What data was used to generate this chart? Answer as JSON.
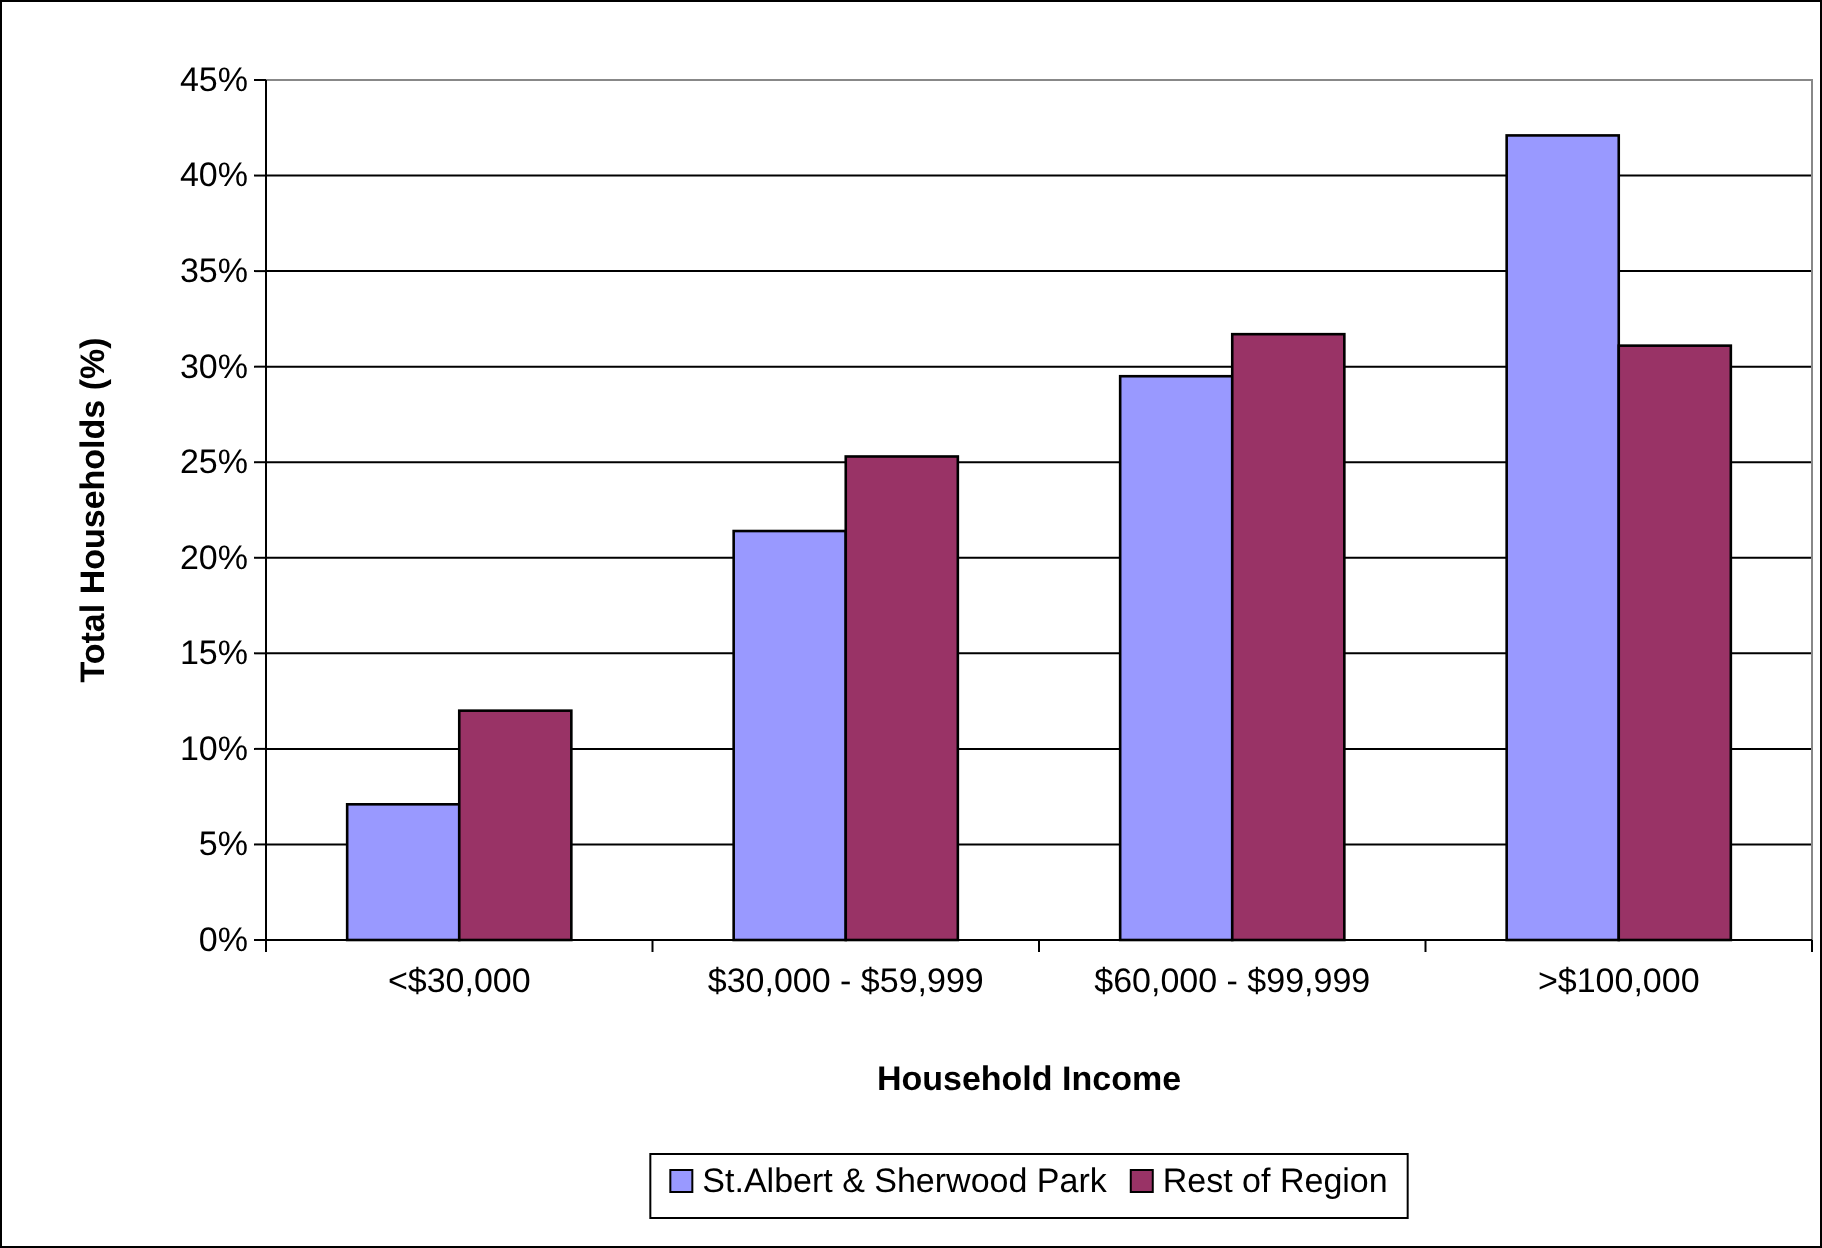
{
  "chart_data": {
    "type": "bar",
    "xlabel": "Household Income",
    "ylabel": "Total Households (%)",
    "categories": [
      "<$30,000",
      "$30,000 - $59,999",
      "$60,000 - $99,999",
      ">$100,000"
    ],
    "series": [
      {
        "name": "St.Albert & Sherwood Park",
        "color": "#9999ff",
        "values": [
          7.1,
          21.4,
          29.5,
          42.1
        ]
      },
      {
        "name": "Rest of Region",
        "color": "#993366",
        "values": [
          12.0,
          25.3,
          31.7,
          31.1
        ]
      }
    ],
    "ylim": [
      0,
      45
    ],
    "yticks": [
      {
        "value": 0,
        "label": "0%"
      },
      {
        "value": 5,
        "label": "5%"
      },
      {
        "value": 10,
        "label": "10%"
      },
      {
        "value": 15,
        "label": "15%"
      },
      {
        "value": 20,
        "label": "20%"
      },
      {
        "value": 25,
        "label": "25%"
      },
      {
        "value": 30,
        "label": "30%"
      },
      {
        "value": 35,
        "label": "35%"
      },
      {
        "value": 40,
        "label": "40%"
      },
      {
        "value": 45,
        "label": "45%"
      }
    ],
    "grid": "y",
    "legend": "bottom"
  }
}
